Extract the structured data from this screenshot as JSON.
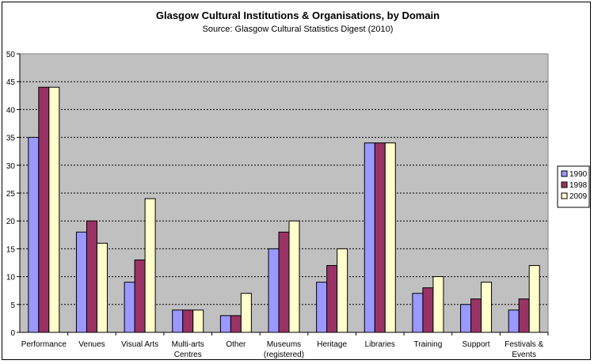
{
  "chart_data": {
    "type": "bar",
    "title": "Glasgow Cultural Institutions & Organisations, by Domain",
    "subtitle": "Source: Glasgow Cultural Statistics Digest (2010)",
    "categories": [
      [
        "Performance"
      ],
      [
        "Venues"
      ],
      [
        "Visual Arts"
      ],
      [
        "Multi-arts",
        "Centres"
      ],
      [
        "Other"
      ],
      [
        "Museums",
        "(registered)"
      ],
      [
        "Heritage"
      ],
      [
        "Libraries"
      ],
      [
        "Training"
      ],
      [
        "Support"
      ],
      [
        "Festivals &",
        "Events"
      ]
    ],
    "series": [
      {
        "name": "1990",
        "color": "#9999ff",
        "values": [
          35,
          18,
          9,
          4,
          3,
          15,
          9,
          34,
          7,
          5,
          4
        ]
      },
      {
        "name": "1998",
        "color": "#993366",
        "values": [
          44,
          20,
          13,
          4,
          3,
          18,
          12,
          34,
          8,
          6,
          6
        ]
      },
      {
        "name": "2009",
        "color": "#ffffcc",
        "values": [
          44,
          16,
          24,
          4,
          7,
          20,
          15,
          34,
          10,
          9,
          12
        ]
      }
    ],
    "ylim": [
      0,
      50
    ],
    "yticks": [
      "0",
      "5",
      "10",
      "15",
      "20",
      "25",
      "30",
      "35",
      "40",
      "45",
      "50"
    ],
    "grid": true,
    "legend": "right",
    "plot_background": "#c0c0c0"
  }
}
